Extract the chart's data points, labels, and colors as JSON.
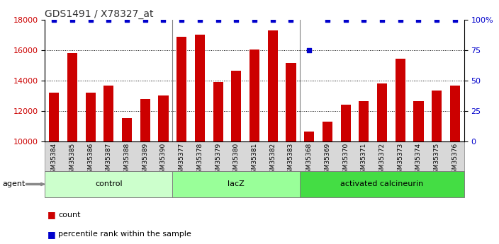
{
  "title": "GDS1491 / X78327_at",
  "samples": [
    "GSM35384",
    "GSM35385",
    "GSM35386",
    "GSM35387",
    "GSM35388",
    "GSM35389",
    "GSM35390",
    "GSM35377",
    "GSM35378",
    "GSM35379",
    "GSM35380",
    "GSM35381",
    "GSM35382",
    "GSM35383",
    "GSM35368",
    "GSM35369",
    "GSM35370",
    "GSM35371",
    "GSM35372",
    "GSM35373",
    "GSM35374",
    "GSM35375",
    "GSM35376"
  ],
  "counts": [
    13200,
    15800,
    13200,
    13650,
    11550,
    12800,
    13000,
    16850,
    17000,
    13900,
    14650,
    16050,
    17300,
    15150,
    10650,
    11300,
    12400,
    12650,
    13800,
    15450,
    12650,
    13350,
    13650
  ],
  "percentile": [
    100,
    100,
    100,
    100,
    100,
    100,
    100,
    100,
    100,
    100,
    100,
    100,
    100,
    100,
    75,
    100,
    100,
    100,
    100,
    100,
    100,
    100,
    100
  ],
  "groups": [
    {
      "label": "control",
      "start": 0,
      "end": 7,
      "color": "#ccffcc"
    },
    {
      "label": "lacZ",
      "start": 7,
      "end": 14,
      "color": "#99ff99"
    },
    {
      "label": "activated calcineurin",
      "start": 14,
      "end": 23,
      "color": "#44dd44"
    }
  ],
  "bar_color": "#cc0000",
  "dot_color": "#0000cc",
  "ylim_left": [
    10000,
    18000
  ],
  "ylim_right": [
    0,
    100
  ],
  "yticks_left": [
    10000,
    12000,
    14000,
    16000,
    18000
  ],
  "yticks_right": [
    0,
    25,
    50,
    75,
    100
  ],
  "grid_yticks": [
    12000,
    14000,
    16000
  ],
  "bg_color": "#ffffff",
  "agent_label": "agent",
  "legend_count": "count",
  "legend_pct": "percentile rank within the sample",
  "title_color": "#333333",
  "left_axis_color": "#cc0000",
  "right_axis_color": "#0000cc"
}
